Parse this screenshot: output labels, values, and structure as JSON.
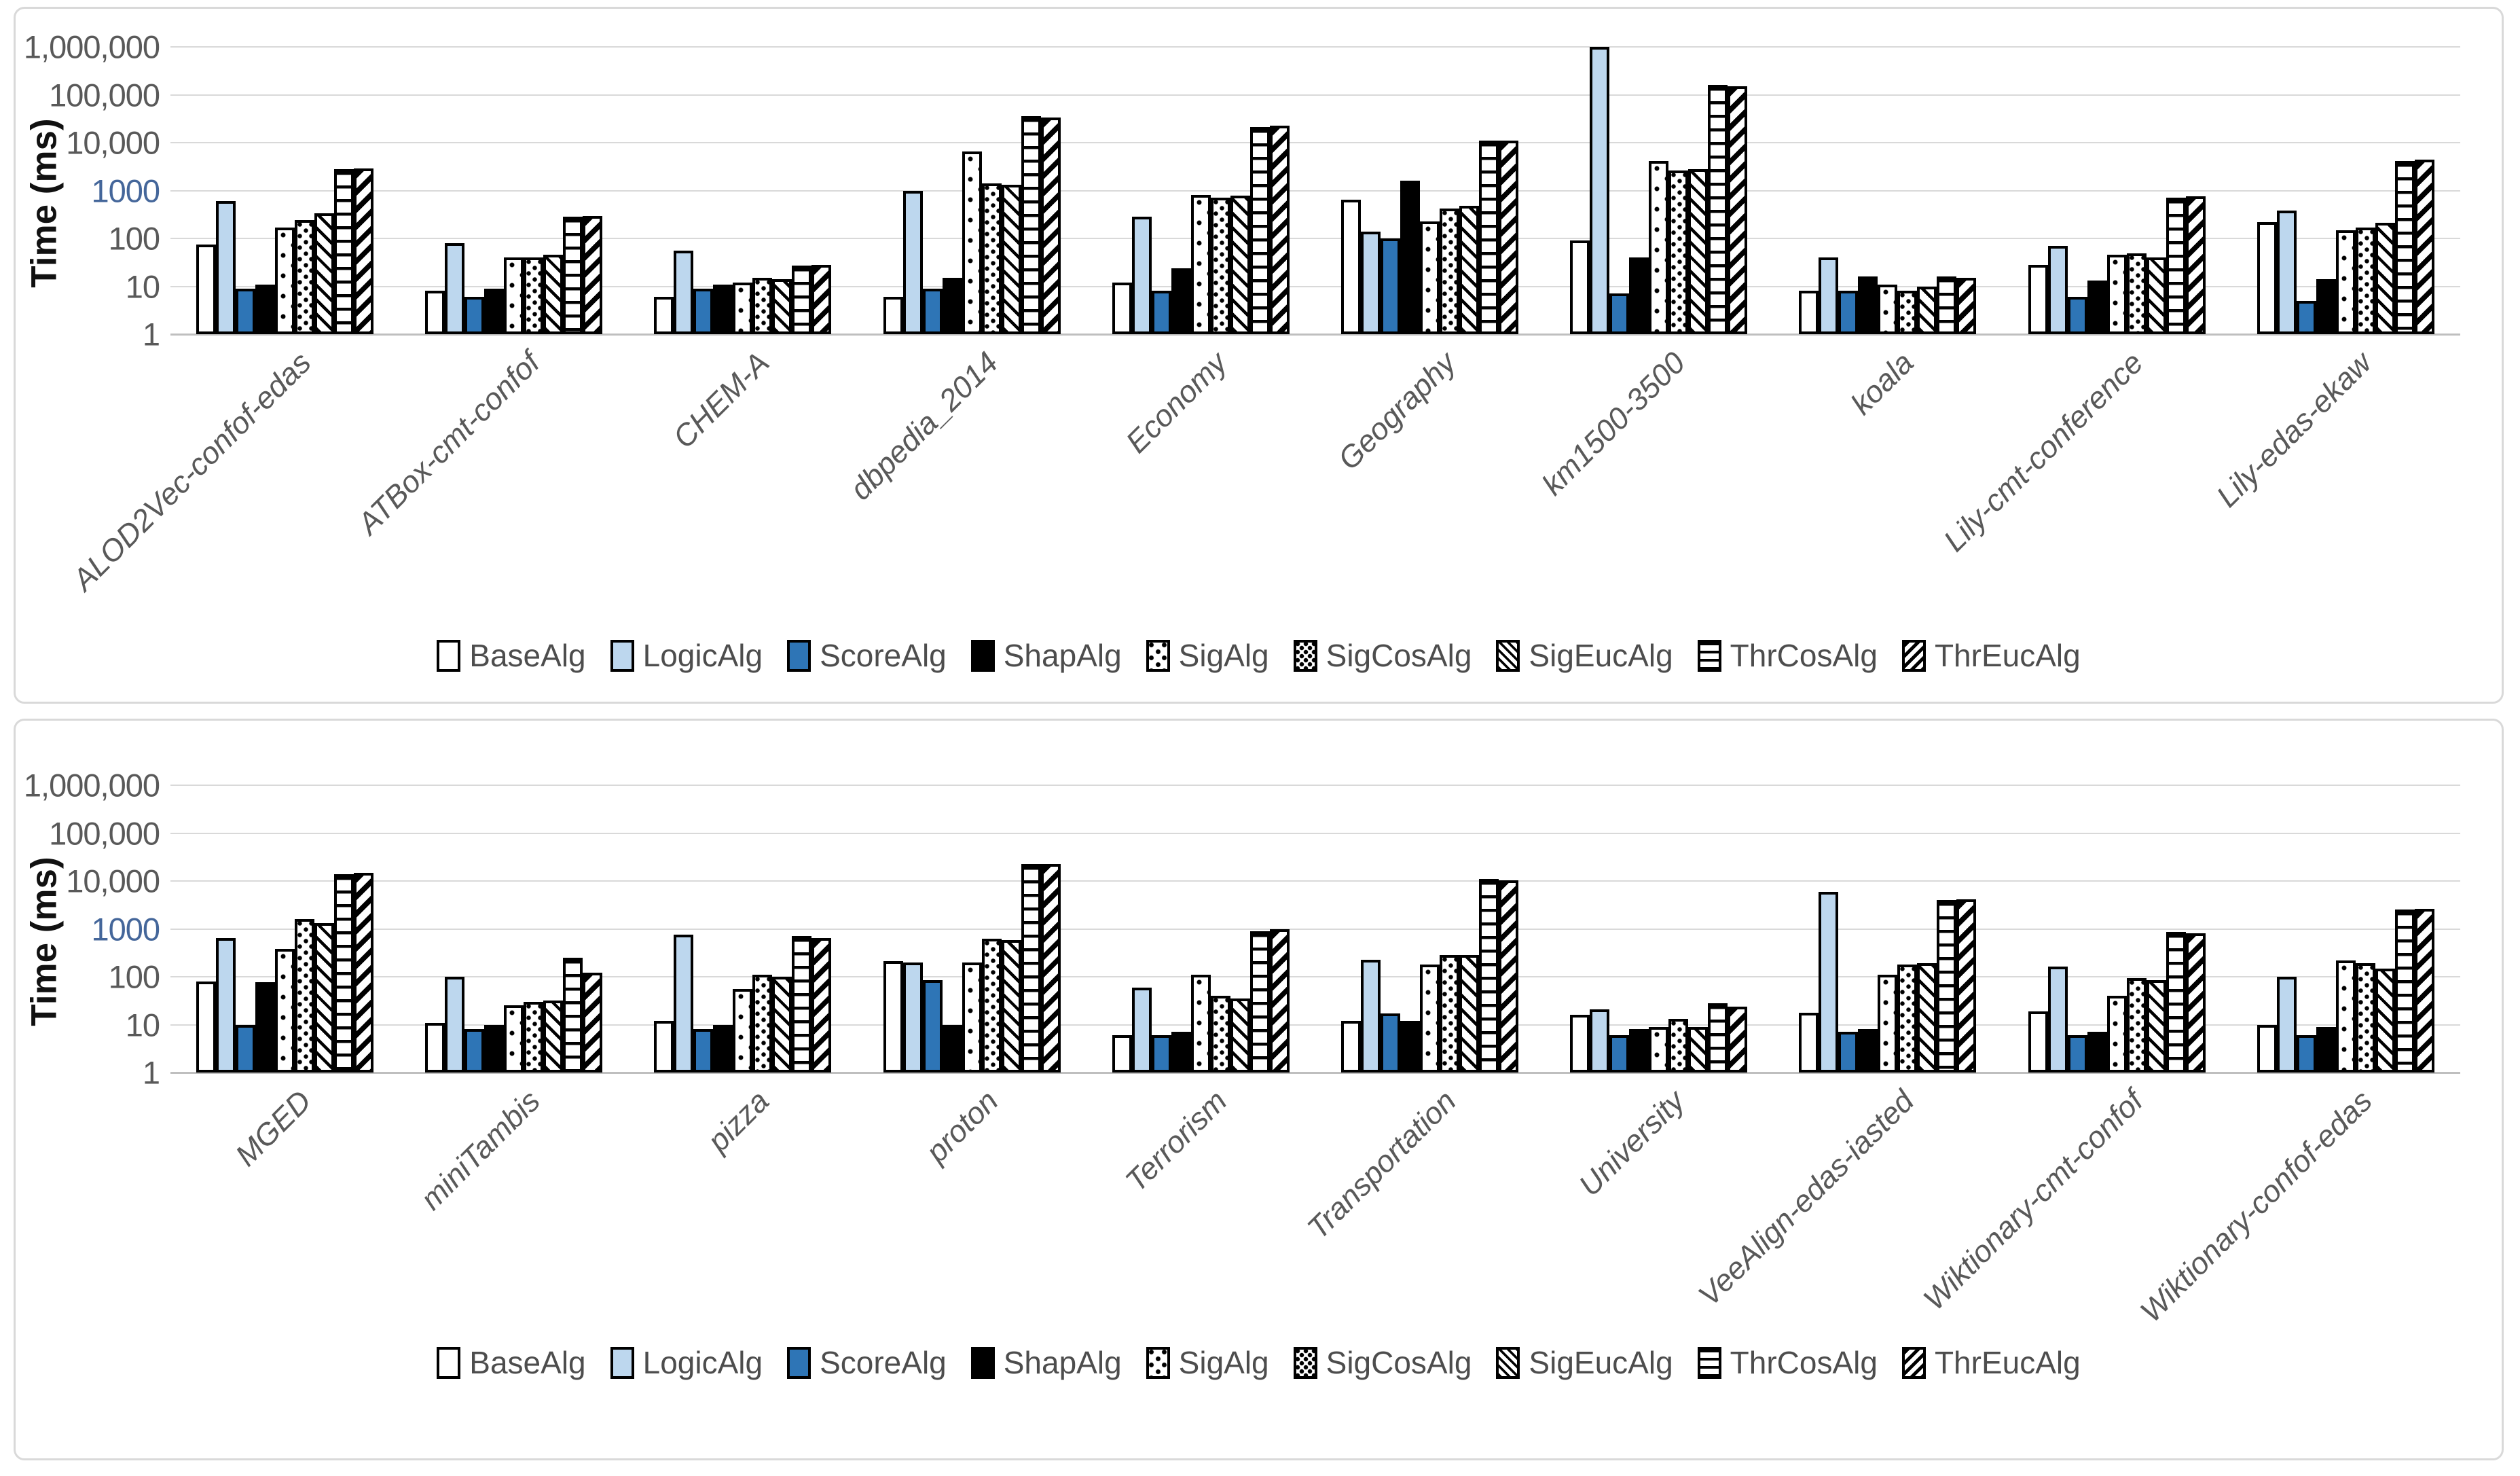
{
  "page": {
    "background": "#FFFFFF",
    "panel_border_color": "#D9D9D9",
    "gridline_color": "#D9D9D9",
    "axis_line_color": "#BFBFBF",
    "tick_text_color": "#595959",
    "legend_text_color": "#4D4D4D",
    "category_text_color": "#595959"
  },
  "chart_data": [
    {
      "type": "bar",
      "scale": "log",
      "title": "",
      "xlabel": "",
      "ylabel": "Time (ms)",
      "ylim": [
        1,
        1000000
      ],
      "grid": true,
      "legend_position": "bottom",
      "yticks": [
        {
          "label": "1,000,000",
          "color": "#595959"
        },
        {
          "label": "100,000",
          "color": "#595959"
        },
        {
          "label": "10,000",
          "color": "#595959"
        },
        {
          "label": "1000",
          "color": "#44669A"
        },
        {
          "label": "100",
          "color": "#595959"
        },
        {
          "label": "10",
          "color": "#595959"
        },
        {
          "label": "1",
          "color": "#595959"
        }
      ],
      "categories": [
        "ALOD2Vec-confof-edas",
        "ATBox-cmt-confof",
        "CHEM-A",
        "dbpedia_2014",
        "Economy",
        "Geography",
        "km1500-3500",
        "koala",
        "Lily-cmt-conference",
        "Lily-edas-ekaw"
      ],
      "series": [
        {
          "name": "BaseAlg",
          "pattern": "solid",
          "fill": "#FFFFFF",
          "values": [
            75,
            8,
            6,
            6,
            12,
            650,
            90,
            8,
            28,
            220
          ]
        },
        {
          "name": "LogicAlg",
          "pattern": "solid",
          "fill": "#BDD7EE",
          "values": [
            600,
            80,
            55,
            1000,
            280,
            140,
            1000000,
            40,
            70,
            380
          ]
        },
        {
          "name": "ScoreAlg",
          "pattern": "solid",
          "fill": "#2E75B6",
          "values": [
            9,
            6,
            9,
            9,
            8,
            100,
            7,
            8,
            6,
            5
          ]
        },
        {
          "name": "ShapAlg",
          "pattern": "solid",
          "fill": "#000000",
          "values": [
            11,
            9,
            11,
            15,
            24,
            1600,
            40,
            16,
            13,
            14
          ]
        },
        {
          "name": "SigAlg",
          "pattern": "dots-sparse",
          "fill": "#FFFFFF",
          "values": [
            170,
            40,
            12,
            6500,
            800,
            230,
            4200,
            11,
            45,
            150
          ]
        },
        {
          "name": "SigCosAlg",
          "pattern": "dots-dense",
          "fill": "#FFFFFF",
          "values": [
            240,
            40,
            15,
            1400,
            700,
            420,
            2600,
            8,
            48,
            170
          ]
        },
        {
          "name": "SigEucAlg",
          "pattern": "diag-up",
          "fill": "#FFFFFF",
          "values": [
            330,
            45,
            14,
            1300,
            780,
            480,
            2800,
            10,
            40,
            210
          ]
        },
        {
          "name": "ThrCosAlg",
          "pattern": "horiz-lines",
          "fill": "#FFFFFF",
          "values": [
            2800,
            280,
            27,
            36000,
            21000,
            11000,
            160000,
            16,
            700,
            4200
          ]
        },
        {
          "name": "ThrEucAlg",
          "pattern": "diag-down-bold",
          "fill": "#FFFFFF",
          "values": [
            2900,
            290,
            28,
            34000,
            23000,
            11000,
            150000,
            15,
            750,
            4400
          ]
        }
      ]
    },
    {
      "type": "bar",
      "scale": "log",
      "title": "",
      "xlabel": "",
      "ylabel": "Time (ms)",
      "ylim": [
        1,
        1000000
      ],
      "grid": true,
      "legend_position": "bottom",
      "yticks": [
        {
          "label": "1,000,000",
          "color": "#595959"
        },
        {
          "label": "100,000",
          "color": "#595959"
        },
        {
          "label": "10,000",
          "color": "#595959"
        },
        {
          "label": "1000",
          "color": "#44669A"
        },
        {
          "label": "100",
          "color": "#595959"
        },
        {
          "label": "10",
          "color": "#595959"
        },
        {
          "label": "1",
          "color": "#595959"
        }
      ],
      "categories": [
        "MGED",
        "miniTambis",
        "pizza",
        "proton",
        "Terrorism",
        "Transportation",
        "University",
        "VeeAlign-edas-iasted",
        "Wiktionary-cmt-confof",
        "Wiktionary-confof-edas"
      ],
      "series": [
        {
          "name": "BaseAlg",
          "pattern": "solid",
          "fill": "#FFFFFF",
          "values": [
            80,
            11,
            12,
            210,
            6,
            12,
            16,
            18,
            19,
            10
          ]
        },
        {
          "name": "LogicAlg",
          "pattern": "solid",
          "fill": "#BDD7EE",
          "values": [
            650,
            100,
            750,
            200,
            60,
            230,
            21,
            6000,
            165,
            100
          ]
        },
        {
          "name": "ScoreAlg",
          "pattern": "solid",
          "fill": "#2E75B6",
          "values": [
            10,
            8,
            8,
            85,
            6,
            17,
            6,
            7,
            6,
            6
          ]
        },
        {
          "name": "ShapAlg",
          "pattern": "solid",
          "fill": "#000000",
          "values": [
            78,
            10,
            10,
            10,
            7,
            12,
            8,
            8,
            7,
            9
          ]
        },
        {
          "name": "SigAlg",
          "pattern": "dots-sparse",
          "fill": "#FFFFFF",
          "values": [
            380,
            25,
            55,
            200,
            110,
            180,
            9,
            110,
            40,
            220
          ]
        },
        {
          "name": "SigCosAlg",
          "pattern": "dots-dense",
          "fill": "#FFFFFF",
          "values": [
            1600,
            30,
            110,
            620,
            40,
            280,
            13,
            180,
            95,
            195
          ]
        },
        {
          "name": "SigEucAlg",
          "pattern": "diag-up",
          "fill": "#FFFFFF",
          "values": [
            1300,
            32,
            100,
            580,
            35,
            280,
            9,
            190,
            85,
            150
          ]
        },
        {
          "name": "ThrCosAlg",
          "pattern": "horiz-lines",
          "fill": "#FFFFFF",
          "values": [
            14000,
            250,
            700,
            23000,
            900,
            11000,
            28,
            4000,
            850,
            2500
          ]
        },
        {
          "name": "ThrEucAlg",
          "pattern": "diag-down-bold",
          "fill": "#FFFFFF",
          "values": [
            15000,
            120,
            650,
            23000,
            1000,
            10500,
            24,
            4200,
            800,
            2600
          ]
        }
      ]
    }
  ]
}
